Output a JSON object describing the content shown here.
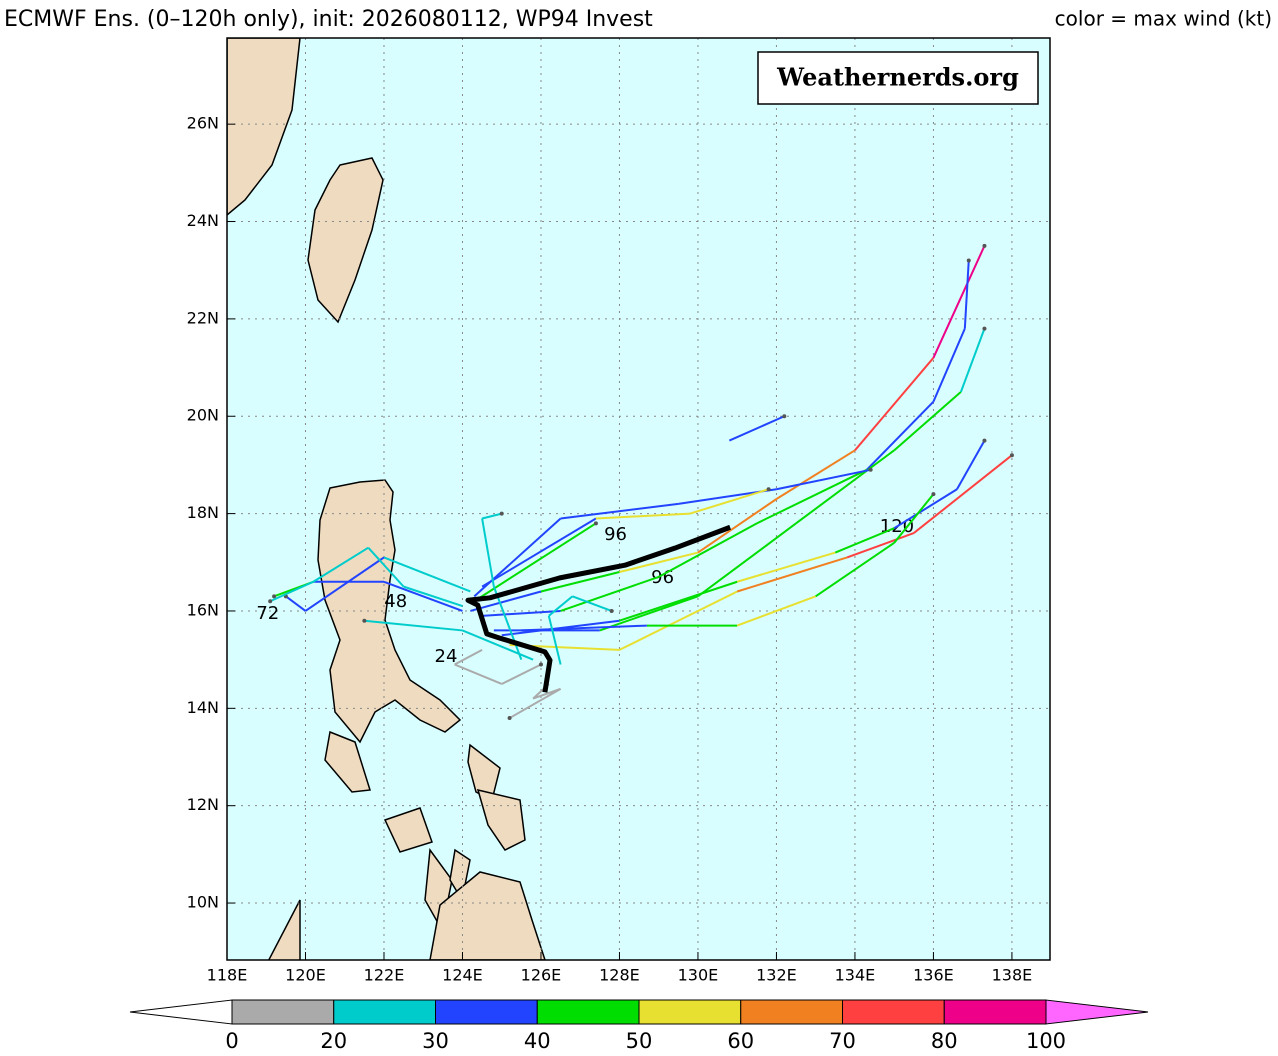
{
  "title": "ECMWF Ens. (0–120h only), init: 2026080112, WP94 Invest",
  "legend_note": "color = max wind (kt)",
  "watermark": "Weathernerds.org",
  "map": {
    "lon_range": [
      118,
      138.97
    ],
    "lat_range": [
      8.83,
      27.77
    ],
    "lon_ticks": [
      {
        "value": 118,
        "label": "118E"
      },
      {
        "value": 120,
        "label": "120E"
      },
      {
        "value": 122,
        "label": "122E"
      },
      {
        "value": 124,
        "label": "124E"
      },
      {
        "value": 126,
        "label": "126E"
      },
      {
        "value": 128,
        "label": "128E"
      },
      {
        "value": 130,
        "label": "130E"
      },
      {
        "value": 132,
        "label": "132E"
      },
      {
        "value": 134,
        "label": "134E"
      },
      {
        "value": 136,
        "label": "136E"
      },
      {
        "value": 138,
        "label": "138E"
      }
    ],
    "lat_ticks": [
      {
        "value": 10,
        "label": "10N"
      },
      {
        "value": 12,
        "label": "12N"
      },
      {
        "value": 14,
        "label": "14N"
      },
      {
        "value": 16,
        "label": "16N"
      },
      {
        "value": 18,
        "label": "18N"
      },
      {
        "value": 20,
        "label": "20N"
      },
      {
        "value": 22,
        "label": "22N"
      },
      {
        "value": 24,
        "label": "24N"
      },
      {
        "value": 26,
        "label": "26N"
      }
    ],
    "grid": true
  },
  "colorbar": {
    "bounds": [
      0,
      20,
      30,
      40,
      50,
      60,
      70,
      80,
      100
    ],
    "colors": [
      "#aaaaaa",
      "#00cccc",
      "#2244ff",
      "#00dd00",
      "#e8e030",
      "#f08020",
      "#ff4040",
      "#ee0088"
    ],
    "under_color": "#ffffff",
    "over_color": "#ff66ff"
  },
  "tracks": [
    {
      "points": [
        [
          124.2,
          16.0,
          25
        ],
        [
          126,
          16.4,
          35
        ],
        [
          128,
          16.8,
          45
        ],
        [
          130,
          17.2,
          55
        ],
        [
          132,
          18.3,
          62
        ],
        [
          134,
          19.3,
          65
        ],
        [
          136,
          21.2,
          75
        ],
        [
          137.3,
          23.5,
          85
        ]
      ]
    },
    {
      "points": [
        [
          124.5,
          15.9,
          25
        ],
        [
          126.5,
          16.0,
          35
        ],
        [
          129,
          16.7,
          45
        ],
        [
          131.5,
          17.8,
          48
        ],
        [
          134.3,
          18.9,
          48
        ],
        [
          136,
          20.3,
          38
        ],
        [
          136.8,
          21.8,
          35
        ],
        [
          136.9,
          23.2,
          35
        ]
      ]
    },
    {
      "points": [
        [
          124.8,
          15.6,
          28
        ],
        [
          127.5,
          15.6,
          35
        ],
        [
          130,
          16.3,
          42
        ],
        [
          132.5,
          17.8,
          45
        ],
        [
          135,
          19.3,
          42
        ],
        [
          136.7,
          20.5,
          42
        ],
        [
          137.3,
          21.8,
          25
        ]
      ]
    },
    {
      "points": [
        [
          125,
          15.5,
          30
        ],
        [
          128,
          15.8,
          38
        ],
        [
          131,
          16.6,
          45
        ],
        [
          133.5,
          17.2,
          50
        ],
        [
          135,
          17.7,
          45
        ],
        [
          136.6,
          18.5,
          38
        ],
        [
          137.3,
          19.5,
          35
        ]
      ]
    },
    {
      "points": [
        [
          125.2,
          15.3,
          30
        ],
        [
          128,
          15.2,
          55
        ],
        [
          131,
          16.4,
          55
        ],
        [
          133.8,
          17.1,
          65
        ],
        [
          135.5,
          17.6,
          75
        ],
        [
          138,
          19.2,
          75
        ]
      ]
    },
    {
      "points": [
        [
          125.5,
          15.6,
          25
        ],
        [
          128.7,
          15.7,
          35
        ],
        [
          131,
          15.7,
          40
        ],
        [
          133,
          16.3,
          50
        ],
        [
          135,
          17.4,
          45
        ],
        [
          136,
          18.4,
          45
        ]
      ]
    },
    {
      "points": [
        [
          124.3,
          16.3,
          30
        ],
        [
          126.5,
          17.9,
          35
        ],
        [
          129.5,
          18.2,
          35
        ],
        [
          132,
          18.5,
          35
        ],
        [
          134.4,
          18.9,
          35
        ]
      ]
    },
    {
      "points": [
        [
          124.5,
          16.5,
          25
        ],
        [
          127.4,
          17.9,
          35
        ],
        [
          129.8,
          18.0,
          52
        ],
        [
          131.8,
          18.5,
          58
        ]
      ]
    },
    {
      "points": [
        [
          124.0,
          16.0,
          25
        ],
        [
          122,
          16.6,
          35
        ],
        [
          120.2,
          16.6,
          35
        ],
        [
          119.2,
          16.3,
          42
        ]
      ]
    },
    {
      "points": [
        [
          124.2,
          16.4,
          25
        ],
        [
          122,
          17.1,
          25
        ],
        [
          120,
          16.0,
          35
        ],
        [
          119.5,
          16.3,
          35
        ]
      ]
    },
    {
      "points": [
        [
          130.8,
          19.5,
          35
        ],
        [
          132.2,
          20.0,
          35
        ]
      ]
    },
    {
      "points": [
        [
          124.3,
          16.2,
          30
        ],
        [
          127.4,
          17.8,
          45
        ]
      ]
    },
    {
      "points": [
        [
          126.2,
          14.5,
          15
        ],
        [
          125.8,
          14.2,
          15
        ],
        [
          126.5,
          14.4,
          15
        ],
        [
          125.2,
          13.8,
          15
        ]
      ]
    },
    {
      "points": [
        [
          124.5,
          15.2,
          15
        ],
        [
          123.8,
          14.9,
          15
        ],
        [
          125,
          14.5,
          15
        ],
        [
          126,
          14.9,
          15
        ]
      ]
    },
    {
      "points": [
        [
          125.5,
          15.0,
          25
        ],
        [
          124.8,
          16.5,
          25
        ],
        [
          124.5,
          17.9,
          25
        ],
        [
          125,
          18.0,
          25
        ]
      ]
    },
    {
      "points": [
        [
          125.8,
          15.0,
          25
        ],
        [
          124,
          15.6,
          25
        ],
        [
          121.5,
          15.8,
          25
        ]
      ]
    },
    {
      "points": [
        [
          124,
          16.1,
          25
        ],
        [
          122.5,
          16.5,
          25
        ],
        [
          121.6,
          17.3,
          25
        ],
        [
          120.2,
          16.6,
          25
        ],
        [
          119.1,
          16.2,
          25
        ]
      ]
    },
    {
      "points": [
        [
          126.5,
          14.9,
          25
        ],
        [
          126.2,
          15.9,
          25
        ],
        [
          126.8,
          16.3,
          25
        ],
        [
          127.8,
          16.0,
          25
        ]
      ]
    }
  ],
  "mean_track": [
    [
      126.1,
      14.33
    ],
    [
      126.23,
      14.99
    ],
    [
      126.1,
      15.16
    ],
    [
      124.96,
      15.44
    ],
    [
      124.62,
      15.53
    ],
    [
      124.39,
      16.12
    ],
    [
      124.14,
      16.22
    ],
    [
      124.7,
      16.27
    ],
    [
      126.48,
      16.68
    ],
    [
      128.14,
      16.94
    ],
    [
      129.41,
      17.29
    ],
    [
      130.82,
      17.72
    ]
  ],
  "hour_labels": [
    {
      "hour": 96,
      "lon": 127.9,
      "lat": 17.56
    },
    {
      "hour": 96,
      "lon": 129.1,
      "lat": 16.68
    },
    {
      "hour": 120,
      "lon": 135.07,
      "lat": 17.72
    },
    {
      "hour": 72,
      "lon": 119.04,
      "lat": 15.94
    },
    {
      "hour": 48,
      "lon": 122.3,
      "lat": 16.18
    },
    {
      "hour": 24,
      "lon": 123.58,
      "lat": 15.05
    }
  ]
}
